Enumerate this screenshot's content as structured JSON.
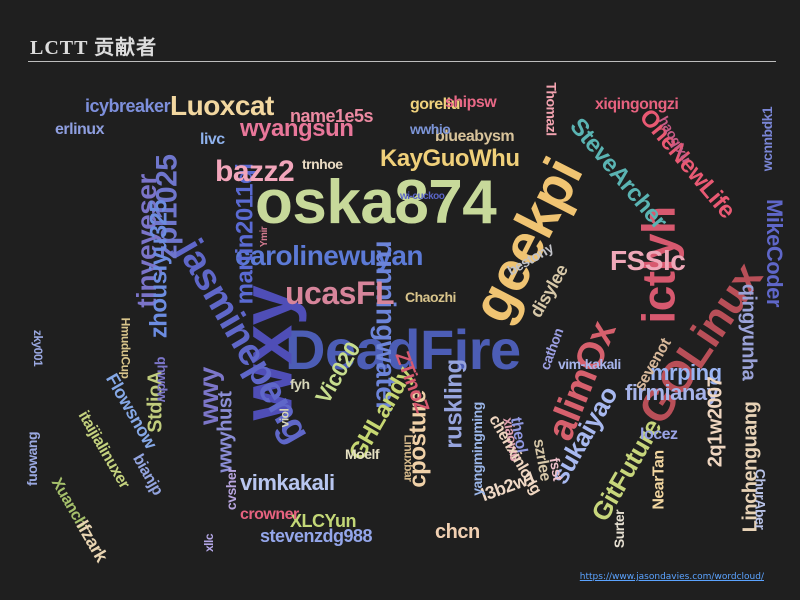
{
  "header": {
    "title": "LCTT 贡献者"
  },
  "footer": {
    "link_text": "https://www.jasondavies.com/wordcloud/"
  },
  "colors": {
    "pink": "#e88aa6",
    "yellow": "#f3d27a",
    "green": "#b7cf6a",
    "purple": "#8c71d8",
    "blue": "#7d8fdb",
    "red": "#d9576c",
    "teal": "#56b6b7",
    "orange": "#e39f59",
    "brown": "#b6525d",
    "peach": "#f0c0a4"
  },
  "cloud": {
    "words": [
      {
        "text": "oska874",
        "color": "#c7d99a",
        "size": 62,
        "rotate": 0
      },
      {
        "text": "DeadFire",
        "color": "#4c5db5",
        "size": 56,
        "rotate": 0
      },
      {
        "text": "geekpi",
        "color": "#f0c472",
        "size": 56,
        "rotate": -63
      },
      {
        "text": "wxy",
        "color": "#4f4eb7",
        "size": 72,
        "rotate": -90
      },
      {
        "text": "jasminepeng",
        "color": "#5f67c9",
        "size": 38,
        "rotate": 60
      },
      {
        "text": "ictlyh",
        "color": "#d7596f",
        "size": 46,
        "rotate": -90
      },
      {
        "text": "GOLinux",
        "color": "#b94f58",
        "size": 44,
        "rotate": -56
      },
      {
        "text": "alimOx",
        "color": "#d6606d",
        "size": 38,
        "rotate": -68
      },
      {
        "text": "carolinewuyan",
        "color": "#5c7ad6",
        "size": 28,
        "rotate": 0
      },
      {
        "text": "runningwater",
        "color": "#6c84d9",
        "size": 28,
        "rotate": 90
      },
      {
        "text": "martin2011qi",
        "color": "#5a6ad2",
        "size": 24,
        "rotate": -90
      },
      {
        "text": "tinyeyeser",
        "color": "#7b74c9",
        "size": 28,
        "rotate": -90
      },
      {
        "text": "zpl1025",
        "color": "#6f76cc",
        "size": 30,
        "rotate": -90
      },
      {
        "text": "zhousiyu325",
        "color": "#6c8ce0",
        "size": 24,
        "rotate": -90
      },
      {
        "text": "Luoxcat",
        "color": "#f2d7a0",
        "size": 28,
        "rotate": 0
      },
      {
        "text": "bazz2",
        "color": "#f2a6bb",
        "size": 30,
        "rotate": 0
      },
      {
        "text": "wyangsun",
        "color": "#e9779a",
        "size": 24,
        "rotate": 0
      },
      {
        "text": "KayGuoWhu",
        "color": "#f0d07a",
        "size": 24,
        "rotate": 0
      },
      {
        "text": "ucasFL",
        "color": "#d7859b",
        "size": 32,
        "rotate": 0
      },
      {
        "text": "FSSlc",
        "color": "#efa7b8",
        "size": 28,
        "rotate": 0
      },
      {
        "text": "SteveArcher",
        "color": "#5ab4b3",
        "size": 24,
        "rotate": 50
      },
      {
        "text": "OneNewLife",
        "color": "#e95973",
        "size": 24,
        "rotate": 50
      },
      {
        "text": "MikeCoder",
        "color": "#5f67c9",
        "size": 22,
        "rotate": 90
      },
      {
        "text": "qingyunha",
        "color": "#9aa2d8",
        "size": 20,
        "rotate": 90
      },
      {
        "text": "sukaiyao",
        "color": "#a8b9f0",
        "size": 26,
        "rotate": -60
      },
      {
        "text": "firmianay",
        "color": "#a7b4ea",
        "size": 22,
        "rotate": 0
      },
      {
        "text": "mrping",
        "color": "#9ab4f2",
        "size": 22,
        "rotate": 0
      },
      {
        "text": "GitFuture",
        "color": "#c7d67b",
        "size": 26,
        "rotate": -60
      },
      {
        "text": "Linchenguang",
        "color": "#e7d2b6",
        "size": 20,
        "rotate": -90
      },
      {
        "text": "2q1w2007",
        "color": "#efd6c0",
        "size": 20,
        "rotate": -90
      },
      {
        "text": "GHLandy",
        "color": "#c6d772",
        "size": 24,
        "rotate": -60
      },
      {
        "text": "Vic020",
        "color": "#c7dd8d",
        "size": 22,
        "rotate": -60
      },
      {
        "text": "ruskling",
        "color": "#96a4dd",
        "size": 24,
        "rotate": -90
      },
      {
        "text": "cposture",
        "color": "#f0d1a8",
        "size": 24,
        "rotate": -90
      },
      {
        "text": "ZTinoZ",
        "color": "#d7596f",
        "size": 20,
        "rotate": 70
      },
      {
        "text": "vimkakali",
        "color": "#b8c6f0",
        "size": 22,
        "rotate": 0
      },
      {
        "text": "XLCYun",
        "color": "#c3d777",
        "size": 18,
        "rotate": 0
      },
      {
        "text": "stevenzdg988",
        "color": "#94a6ea",
        "size": 18,
        "rotate": 0
      },
      {
        "text": "crowner",
        "color": "#e7627f",
        "size": 16,
        "rotate": 0
      },
      {
        "text": "chcn",
        "color": "#f1d0b2",
        "size": 20,
        "rotate": 0
      },
      {
        "text": "wwy",
        "color": "#7c76c9",
        "size": 28,
        "rotate": -90
      },
      {
        "text": "wwyhust",
        "color": "#8a8dd5",
        "size": 20,
        "rotate": -90
      },
      {
        "text": "StdioA",
        "color": "#c1cd7d",
        "size": 20,
        "rotate": -90
      },
      {
        "text": "Flowsnow",
        "color": "#85a8e6",
        "size": 18,
        "rotate": 60
      },
      {
        "text": "fuowang",
        "color": "#9aa8e0",
        "size": 14,
        "rotate": -90
      },
      {
        "text": "itaijialinuxer",
        "color": "#c4d27e",
        "size": 16,
        "rotate": 60
      },
      {
        "text": "Xuanchi",
        "color": "#a5c06b",
        "size": 16,
        "rotate": 60
      },
      {
        "text": "lfzark",
        "color": "#e9d5b2",
        "size": 18,
        "rotate": 60
      },
      {
        "text": "bianjp",
        "color": "#93a4df",
        "size": 16,
        "rotate": 60
      },
      {
        "text": "icybreaker",
        "color": "#7d8fdb",
        "size": 18,
        "rotate": 0
      },
      {
        "text": "erlinux",
        "color": "#8f9fe0",
        "size": 16,
        "rotate": 0
      },
      {
        "text": "name1e5s",
        "color": "#ec8aa2",
        "size": 18,
        "rotate": 0
      },
      {
        "text": "goreliu",
        "color": "#f0d27d",
        "size": 16,
        "rotate": 0
      },
      {
        "text": "shipsw",
        "color": "#e86886",
        "size": 16,
        "rotate": 0
      },
      {
        "text": "blueabysm",
        "color": "#d8c39a",
        "size": 16,
        "rotate": 0
      },
      {
        "text": "wwhio",
        "color": "#7c95d8",
        "size": 14,
        "rotate": 0
      },
      {
        "text": "livc",
        "color": "#8fb2ed",
        "size": 16,
        "rotate": 0
      },
      {
        "text": "trnhoe",
        "color": "#eadbc3",
        "size": 14,
        "rotate": 0
      },
      {
        "text": "xiqingongzi",
        "color": "#e7627f",
        "size": 16,
        "rotate": 0
      },
      {
        "text": "Chaozhi",
        "color": "#d8c48b",
        "size": 14,
        "rotate": 0
      },
      {
        "text": "bestony",
        "color": "#c3c4c9",
        "size": 14,
        "rotate": -30
      },
      {
        "text": "disylee",
        "color": "#d7c8a8",
        "size": 18,
        "rotate": -60
      },
      {
        "text": "vim-kakali",
        "color": "#a7b4ea",
        "size": 14,
        "rotate": 0
      },
      {
        "text": "cathon",
        "color": "#9c9fe3",
        "size": 14,
        "rotate": -70
      },
      {
        "text": "sevenot",
        "color": "#d7b89a",
        "size": 16,
        "rotate": -60
      },
      {
        "text": "Thomazl",
        "color": "#f3a3b0",
        "size": 14,
        "rotate": 90
      },
      {
        "text": "haoqixu",
        "color": "#c65a86",
        "size": 14,
        "rotate": 60
      },
      {
        "text": "wcnnbdk1",
        "color": "#7a86d6",
        "size": 14,
        "rotate": -90
      },
      {
        "text": "xiaow6",
        "color": "#e1a0b0",
        "size": 14,
        "rotate": 80
      },
      {
        "text": "fsst",
        "color": "#f0c1cc",
        "size": 14,
        "rotate": 80
      },
      {
        "text": "szrlee",
        "color": "#d7c8a8",
        "size": 16,
        "rotate": 80
      },
      {
        "text": "theol",
        "color": "#8f97e0",
        "size": 16,
        "rotate": 80
      },
      {
        "text": "chenxinlong",
        "color": "#efd6c0",
        "size": 16,
        "rotate": 60
      },
      {
        "text": "l3b2w1",
        "color": "#f0d9c6",
        "size": 18,
        "rotate": -20
      },
      {
        "text": "yangmingming",
        "color": "#9bb6e9",
        "size": 14,
        "rotate": -90
      },
      {
        "text": "Linuxbar",
        "color": "#d4b88a",
        "size": 12,
        "rotate": 90
      },
      {
        "text": "NearTan",
        "color": "#f3d7a0",
        "size": 16,
        "rotate": -90
      },
      {
        "text": "Surter",
        "color": "#e7e0d2",
        "size": 14,
        "rotate": -90
      },
      {
        "text": "locez",
        "color": "#9aa4e6",
        "size": 16,
        "rotate": 0
      },
      {
        "text": "ChurAber",
        "color": "#b9c3e8",
        "size": 14,
        "rotate": 90
      },
      {
        "text": "Moelf",
        "color": "#e5e0c2",
        "size": 14,
        "rotate": 0
      },
      {
        "text": "fyh",
        "color": "#d7d6b8",
        "size": 14,
        "rotate": 0
      },
      {
        "text": "viol",
        "color": "#d7d6b8",
        "size": 12,
        "rotate": -90
      },
      {
        "text": "cvsher",
        "color": "#b7a4df",
        "size": 14,
        "rotate": -90
      },
      {
        "text": "xllc",
        "color": "#b4a7e7",
        "size": 12,
        "rotate": -90
      },
      {
        "text": "Ymir",
        "color": "#d37b90",
        "size": 10,
        "rotate": -90
      },
      {
        "text": "zky001",
        "color": "#9aa8e0",
        "size": 12,
        "rotate": 90
      },
      {
        "text": "HmuduCup",
        "color": "#d9c58b",
        "size": 12,
        "rotate": 90
      },
      {
        "text": "qhwdw",
        "color": "#7c76c9",
        "size": 14,
        "rotate": 90
      },
      {
        "text": "wi-cuckoo",
        "color": "#5a65c6",
        "size": 10,
        "rotate": 0
      }
    ]
  }
}
